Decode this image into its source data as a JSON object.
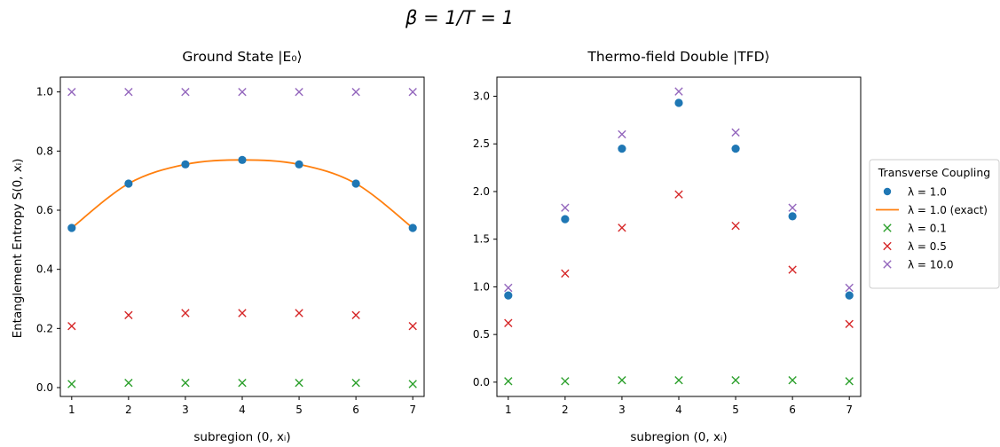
{
  "figure": {
    "suptitle": "β = 1/T = 1"
  },
  "colors": {
    "blue": "#1f77b4",
    "orange": "#ff7f0e",
    "green": "#2ca02c",
    "red": "#d62728",
    "purple": "#9467bd"
  },
  "legend": {
    "title": "Transverse Coupling",
    "entries": [
      {
        "label": "λ = 1.0",
        "marker": "circle",
        "color": "#1f77b4"
      },
      {
        "label": "λ = 1.0 (exact)",
        "marker": "line",
        "color": "#ff7f0e"
      },
      {
        "label": "λ = 0.1",
        "marker": "x",
        "color": "#2ca02c"
      },
      {
        "label": "λ = 0.5",
        "marker": "x",
        "color": "#d62728"
      },
      {
        "label": "λ = 10.0",
        "marker": "x",
        "color": "#9467bd"
      }
    ],
    "placement": "right, outside axes"
  },
  "chart_data": [
    {
      "type": "scatter",
      "title": "Ground State |E₀⟩",
      "xlabel": "subregion (0, xᵢ)",
      "ylabel": "Entanglement Entropy   S(0, xᵢ)",
      "xlim": [
        0.8,
        7.2
      ],
      "ylim": [
        -0.03,
        1.05
      ],
      "xticks": [
        1,
        2,
        3,
        4,
        5,
        6,
        7
      ],
      "yticks": [
        0.0,
        0.2,
        0.4,
        0.6,
        0.8,
        1.0
      ],
      "ytick_labels": [
        "0.0",
        "0.2",
        "0.4",
        "0.6",
        "0.8",
        "1.0"
      ],
      "grid": false,
      "x": [
        1,
        2,
        3,
        4,
        5,
        6,
        7
      ],
      "series": [
        {
          "name": "λ = 1.0",
          "marker": "circle",
          "color": "#1f77b4",
          "values": [
            0.54,
            0.69,
            0.755,
            0.77,
            0.755,
            0.69,
            0.54
          ]
        },
        {
          "name": "λ = 1.0 (exact)",
          "marker": "line",
          "color": "#ff7f0e",
          "values": [
            0.54,
            0.69,
            0.755,
            0.77,
            0.755,
            0.69,
            0.54
          ]
        },
        {
          "name": "λ = 0.1",
          "marker": "x",
          "color": "#2ca02c",
          "values": [
            0.012,
            0.016,
            0.016,
            0.016,
            0.016,
            0.016,
            0.012
          ]
        },
        {
          "name": "λ = 0.5",
          "marker": "x",
          "color": "#d62728",
          "values": [
            0.208,
            0.245,
            0.252,
            0.252,
            0.252,
            0.245,
            0.208
          ]
        },
        {
          "name": "λ = 10.0",
          "marker": "x",
          "color": "#9467bd",
          "values": [
            1.0,
            1.0,
            1.0,
            1.0,
            1.0,
            1.0,
            1.0
          ]
        }
      ]
    },
    {
      "type": "scatter",
      "title": "Thermo-field Double |TFD⟩",
      "xlabel": "subregion (0, xᵢ)",
      "ylabel": "",
      "xlim": [
        0.8,
        7.2
      ],
      "ylim": [
        -0.15,
        3.2
      ],
      "xticks": [
        1,
        2,
        3,
        4,
        5,
        6,
        7
      ],
      "yticks": [
        0.0,
        0.5,
        1.0,
        1.5,
        2.0,
        2.5,
        3.0
      ],
      "ytick_labels": [
        "0.0",
        "0.5",
        "1.0",
        "1.5",
        "2.0",
        "2.5",
        "3.0"
      ],
      "grid": false,
      "x": [
        1,
        2,
        3,
        4,
        5,
        6,
        7
      ],
      "series": [
        {
          "name": "λ = 1.0",
          "marker": "circle",
          "color": "#1f77b4",
          "values": [
            0.91,
            1.71,
            2.45,
            2.93,
            2.45,
            1.74,
            0.91
          ]
        },
        {
          "name": "λ = 0.1",
          "marker": "x",
          "color": "#2ca02c",
          "values": [
            0.01,
            0.01,
            0.02,
            0.02,
            0.02,
            0.02,
            0.01
          ]
        },
        {
          "name": "λ = 0.5",
          "marker": "x",
          "color": "#d62728",
          "values": [
            0.62,
            1.14,
            1.62,
            1.97,
            1.64,
            1.18,
            0.61
          ]
        },
        {
          "name": "λ = 10.0",
          "marker": "x",
          "color": "#9467bd",
          "values": [
            0.99,
            1.83,
            2.6,
            3.05,
            2.62,
            1.83,
            0.99
          ]
        }
      ]
    }
  ]
}
